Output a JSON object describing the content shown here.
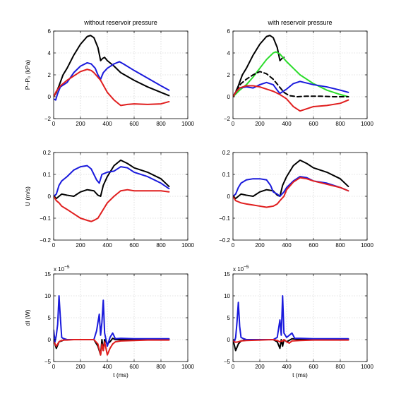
{
  "colors": {
    "black": "#000000",
    "blue": "#1a1adc",
    "red": "#e01e1e",
    "green": "#2adc2a"
  },
  "chart_data": [
    {
      "type": "line",
      "title": "without reservoir pressure",
      "xlabel": "",
      "ylabel": "P−P₀ (kPa)",
      "ylabel_sub": "0",
      "xlim": [
        0,
        1000
      ],
      "ylim": [
        -2,
        6
      ],
      "xticks": [
        0,
        200,
        400,
        600,
        800,
        1000
      ],
      "yticks": [
        -2,
        0,
        2,
        4,
        6
      ],
      "grid": true,
      "series": [
        {
          "color": "black",
          "x": [
            0,
            20,
            40,
            70,
            100,
            150,
            200,
            250,
            275,
            300,
            330,
            350,
            365,
            380,
            400,
            450,
            500,
            600,
            700,
            800,
            860
          ],
          "y": [
            0,
            0.4,
            1.0,
            2.0,
            2.6,
            3.8,
            4.8,
            5.5,
            5.6,
            5.4,
            4.5,
            3.3,
            3.5,
            3.6,
            3.3,
            2.8,
            2.2,
            1.5,
            0.9,
            0.4,
            0.1
          ]
        },
        {
          "color": "blue",
          "x": [
            0,
            15,
            30,
            50,
            100,
            150,
            200,
            250,
            280,
            310,
            330,
            350,
            370,
            400,
            450,
            490,
            520,
            600,
            700,
            800,
            860
          ],
          "y": [
            -0.2,
            -0.3,
            0.3,
            0.9,
            1.3,
            2.2,
            2.8,
            3.1,
            3.0,
            2.6,
            2.0,
            1.6,
            2.2,
            2.6,
            3.0,
            3.2,
            3.0,
            2.4,
            1.7,
            1.0,
            0.6
          ]
        },
        {
          "color": "red",
          "x": [
            0,
            20,
            50,
            100,
            150,
            200,
            250,
            280,
            300,
            350,
            400,
            450,
            500,
            550,
            600,
            700,
            800,
            860
          ],
          "y": [
            0,
            0.5,
            1.0,
            1.5,
            1.9,
            2.3,
            2.5,
            2.4,
            2.2,
            1.5,
            0.4,
            -0.3,
            -0.8,
            -0.7,
            -0.65,
            -0.7,
            -0.65,
            -0.45
          ]
        }
      ]
    },
    {
      "type": "line",
      "title": "with reservoir pressure",
      "xlabel": "",
      "ylabel": "",
      "xlim": [
        0,
        1000
      ],
      "ylim": [
        -2,
        6
      ],
      "xticks": [
        0,
        200,
        400,
        600,
        800,
        1000
      ],
      "yticks": [
        -2,
        0,
        2,
        4,
        6
      ],
      "grid": true,
      "series": [
        {
          "color": "black",
          "x": [
            0,
            20,
            40,
            70,
            100,
            150,
            200,
            250,
            275,
            300,
            330,
            350,
            365,
            380
          ],
          "y": [
            0,
            0.4,
            1.0,
            2.0,
            2.6,
            3.8,
            4.8,
            5.5,
            5.6,
            5.4,
            4.5,
            3.3,
            3.5,
            3.6
          ]
        },
        {
          "color": "green",
          "x": [
            0,
            50,
            100,
            150,
            200,
            250,
            300,
            320,
            350,
            400,
            450,
            500,
            600,
            700,
            800,
            860
          ],
          "y": [
            0,
            0.6,
            1.1,
            1.8,
            2.6,
            3.4,
            4.0,
            4.1,
            3.9,
            3.2,
            2.6,
            2.0,
            1.2,
            0.6,
            0.2,
            0.0
          ]
        },
        {
          "color": "black",
          "dashed": true,
          "x": [
            0,
            30,
            60,
            100,
            150,
            200,
            250,
            300,
            340,
            380,
            420,
            480,
            550,
            650,
            750,
            860
          ],
          "y": [
            0,
            0.7,
            1.2,
            1.6,
            2.0,
            2.3,
            2.1,
            1.6,
            1.0,
            0.4,
            0.1,
            0.0,
            0.05,
            0.05,
            0.0,
            0.0
          ]
        },
        {
          "color": "blue",
          "x": [
            0,
            20,
            50,
            100,
            150,
            200,
            250,
            300,
            330,
            350,
            400,
            450,
            500,
            600,
            700,
            800,
            860
          ],
          "y": [
            0,
            0.4,
            0.8,
            0.9,
            0.8,
            1.1,
            1.3,
            1.1,
            0.6,
            0.3,
            0.7,
            1.2,
            1.4,
            1.1,
            0.9,
            0.6,
            0.4
          ]
        },
        {
          "color": "red",
          "x": [
            0,
            20,
            50,
            100,
            150,
            200,
            250,
            300,
            350,
            400,
            450,
            500,
            550,
            600,
            700,
            800,
            860
          ],
          "y": [
            0,
            0.4,
            0.8,
            1.0,
            1.0,
            0.9,
            0.7,
            0.5,
            0.2,
            -0.2,
            -0.9,
            -1.3,
            -1.1,
            -0.9,
            -0.8,
            -0.6,
            -0.3
          ]
        }
      ]
    },
    {
      "type": "line",
      "title": "",
      "xlabel": "",
      "ylabel": "U (m/s)",
      "xlim": [
        0,
        1000
      ],
      "ylim": [
        -0.2,
        0.2
      ],
      "xticks": [
        0,
        200,
        400,
        600,
        800,
        1000
      ],
      "yticks": [
        -0.2,
        -0.1,
        0,
        0.1,
        0.2
      ],
      "grid": true,
      "series": [
        {
          "color": "black",
          "x": [
            0,
            20,
            40,
            60,
            100,
            150,
            200,
            250,
            300,
            330,
            350,
            370,
            400,
            450,
            500,
            550,
            600,
            700,
            800,
            860
          ],
          "y": [
            0,
            -0.01,
            0.0,
            0.01,
            0.005,
            0.0,
            0.02,
            0.03,
            0.025,
            0.005,
            0.0,
            0.05,
            0.09,
            0.14,
            0.165,
            0.15,
            0.13,
            0.11,
            0.08,
            0.045
          ]
        },
        {
          "color": "blue",
          "x": [
            0,
            20,
            40,
            60,
            100,
            150,
            200,
            250,
            280,
            300,
            320,
            340,
            360,
            400,
            450,
            500,
            550,
            600,
            700,
            800,
            860
          ],
          "y": [
            0,
            0.01,
            0.05,
            0.07,
            0.09,
            0.12,
            0.135,
            0.14,
            0.125,
            0.1,
            0.075,
            0.06,
            0.1,
            0.11,
            0.115,
            0.135,
            0.13,
            0.11,
            0.09,
            0.06,
            0.035
          ]
        },
        {
          "color": "red",
          "x": [
            0,
            20,
            40,
            60,
            100,
            150,
            200,
            250,
            280,
            300,
            330,
            350,
            380,
            400,
            450,
            500,
            550,
            600,
            700,
            800,
            860
          ],
          "y": [
            0,
            -0.02,
            -0.03,
            -0.045,
            -0.06,
            -0.08,
            -0.1,
            -0.11,
            -0.115,
            -0.11,
            -0.1,
            -0.08,
            -0.05,
            -0.03,
            0.0,
            0.025,
            0.03,
            0.025,
            0.025,
            0.025,
            0.02
          ]
        }
      ]
    },
    {
      "type": "line",
      "title": "",
      "xlabel": "",
      "ylabel": "",
      "xlim": [
        0,
        1000
      ],
      "ylim": [
        -0.2,
        0.2
      ],
      "xticks": [
        0,
        200,
        400,
        600,
        800,
        1000
      ],
      "yticks": [
        -0.2,
        -0.1,
        0,
        0.1,
        0.2
      ],
      "grid": true,
      "series": [
        {
          "color": "black",
          "x": [
            0,
            20,
            40,
            60,
            100,
            150,
            200,
            250,
            300,
            330,
            350,
            370,
            400,
            450,
            500,
            550,
            600,
            700,
            800,
            860
          ],
          "y": [
            0,
            -0.01,
            0.0,
            0.01,
            0.005,
            0.0,
            0.02,
            0.03,
            0.025,
            0.005,
            0.0,
            0.05,
            0.09,
            0.14,
            0.165,
            0.15,
            0.13,
            0.11,
            0.08,
            0.045
          ]
        },
        {
          "color": "blue",
          "x": [
            0,
            20,
            40,
            60,
            100,
            150,
            200,
            250,
            280,
            300,
            330,
            350,
            380,
            400,
            450,
            500,
            550,
            600,
            700,
            800,
            860
          ],
          "y": [
            0,
            0.01,
            0.04,
            0.06,
            0.075,
            0.08,
            0.08,
            0.075,
            0.05,
            0.02,
            0.01,
            0.0,
            0.02,
            0.04,
            0.07,
            0.09,
            0.085,
            0.07,
            0.06,
            0.04,
            0.025
          ]
        },
        {
          "color": "red",
          "x": [
            0,
            20,
            40,
            60,
            100,
            150,
            200,
            250,
            300,
            330,
            350,
            380,
            400,
            450,
            500,
            550,
            600,
            700,
            800,
            860
          ],
          "y": [
            0,
            -0.02,
            -0.025,
            -0.03,
            -0.035,
            -0.04,
            -0.045,
            -0.05,
            -0.045,
            -0.035,
            -0.02,
            0.0,
            0.03,
            0.065,
            0.085,
            0.08,
            0.07,
            0.055,
            0.04,
            0.025
          ]
        }
      ]
    },
    {
      "type": "line",
      "title": "",
      "xlabel": "t (ms)",
      "ylabel": "dI (W)",
      "exponent": "x 10",
      "exponent_sup": "−5",
      "xlim": [
        0,
        1000
      ],
      "ylim": [
        -5,
        15
      ],
      "xticks": [
        0,
        200,
        400,
        600,
        800,
        1000
      ],
      "yticks": [
        -5,
        0,
        5,
        10,
        15
      ],
      "grid": true,
      "series": [
        {
          "color": "black",
          "x": [
            0,
            20,
            40,
            60,
            80,
            100,
            150,
            200,
            250,
            300,
            330,
            350,
            360,
            370,
            380,
            400,
            420,
            440,
            460,
            500,
            600,
            700,
            860
          ],
          "y": [
            0,
            -2,
            -0.5,
            -0.3,
            0,
            0,
            0,
            0,
            0,
            0,
            -1.5,
            -3.5,
            0,
            -2.5,
            0,
            -1.0,
            -0.5,
            0.3,
            0,
            0,
            0,
            0,
            0
          ]
        },
        {
          "color": "blue",
          "x": [
            0,
            10,
            20,
            30,
            40,
            50,
            60,
            70,
            100,
            150,
            200,
            250,
            300,
            320,
            340,
            350,
            360,
            370,
            380,
            400,
            420,
            440,
            460,
            500,
            600,
            700,
            860
          ],
          "y": [
            2.2,
            -0.5,
            1.0,
            3.5,
            10.0,
            5.0,
            0.5,
            0.3,
            0.0,
            0.0,
            0.0,
            0.0,
            0.0,
            2.0,
            5.8,
            1.0,
            4.0,
            9.0,
            1.5,
            -1.5,
            0.5,
            1.5,
            0.2,
            0.3,
            0.2,
            0.2,
            0.2
          ]
        },
        {
          "color": "red",
          "x": [
            0,
            10,
            20,
            30,
            40,
            50,
            60,
            80,
            100,
            150,
            200,
            250,
            300,
            330,
            350,
            360,
            370,
            380,
            400,
            420,
            440,
            460,
            500,
            600,
            700,
            860
          ],
          "y": [
            -0.5,
            -1.0,
            -1.5,
            -1.0,
            -0.5,
            -0.3,
            -0.2,
            -0.1,
            -0.1,
            0.0,
            0.0,
            0.0,
            0.0,
            -1.0,
            -3.5,
            -1.0,
            -2.5,
            -0.5,
            -3.5,
            -2.0,
            -1.0,
            -0.5,
            -0.3,
            -0.2,
            -0.1,
            -0.1
          ]
        }
      ]
    },
    {
      "type": "line",
      "title": "",
      "xlabel": "t (ms)",
      "ylabel": "",
      "exponent": "x 10",
      "exponent_sup": "−5",
      "xlim": [
        0,
        1000
      ],
      "ylim": [
        -5,
        15
      ],
      "xticks": [
        0,
        200,
        400,
        600,
        800,
        1000
      ],
      "yticks": [
        -5,
        0,
        5,
        10,
        15
      ],
      "grid": true,
      "series": [
        {
          "color": "black",
          "x": [
            0,
            20,
            40,
            60,
            100,
            200,
            300,
            330,
            350,
            360,
            370,
            380,
            400,
            440,
            500,
            600,
            700,
            860
          ],
          "y": [
            0,
            -2.5,
            -1.0,
            -0.3,
            0,
            0,
            0,
            -0.5,
            -2.0,
            0,
            -1.5,
            0,
            -0.5,
            0.2,
            0,
            0,
            0,
            0
          ]
        },
        {
          "color": "blue",
          "x": [
            0,
            10,
            20,
            30,
            40,
            50,
            60,
            80,
            100,
            200,
            300,
            330,
            350,
            360,
            370,
            380,
            400,
            420,
            440,
            460,
            500,
            600,
            700,
            860
          ],
          "y": [
            0,
            -0.5,
            0.5,
            4.0,
            8.5,
            3.0,
            0.5,
            0.2,
            0.0,
            0.0,
            0.0,
            0.5,
            4.5,
            1.0,
            10.0,
            1.5,
            0.5,
            1.0,
            1.5,
            0.3,
            0.3,
            0.2,
            0.2,
            0.2
          ]
        },
        {
          "color": "red",
          "x": [
            0,
            20,
            40,
            60,
            100,
            200,
            300,
            330,
            350,
            360,
            370,
            380,
            400,
            420,
            440,
            500,
            600,
            700,
            860
          ],
          "y": [
            -0.3,
            -0.6,
            -0.5,
            -0.3,
            -0.2,
            -0.1,
            0.0,
            -0.2,
            -0.5,
            -0.3,
            -0.4,
            0.0,
            -0.5,
            -0.8,
            -0.3,
            -0.2,
            -0.1,
            -0.1,
            -0.1
          ]
        }
      ]
    }
  ]
}
